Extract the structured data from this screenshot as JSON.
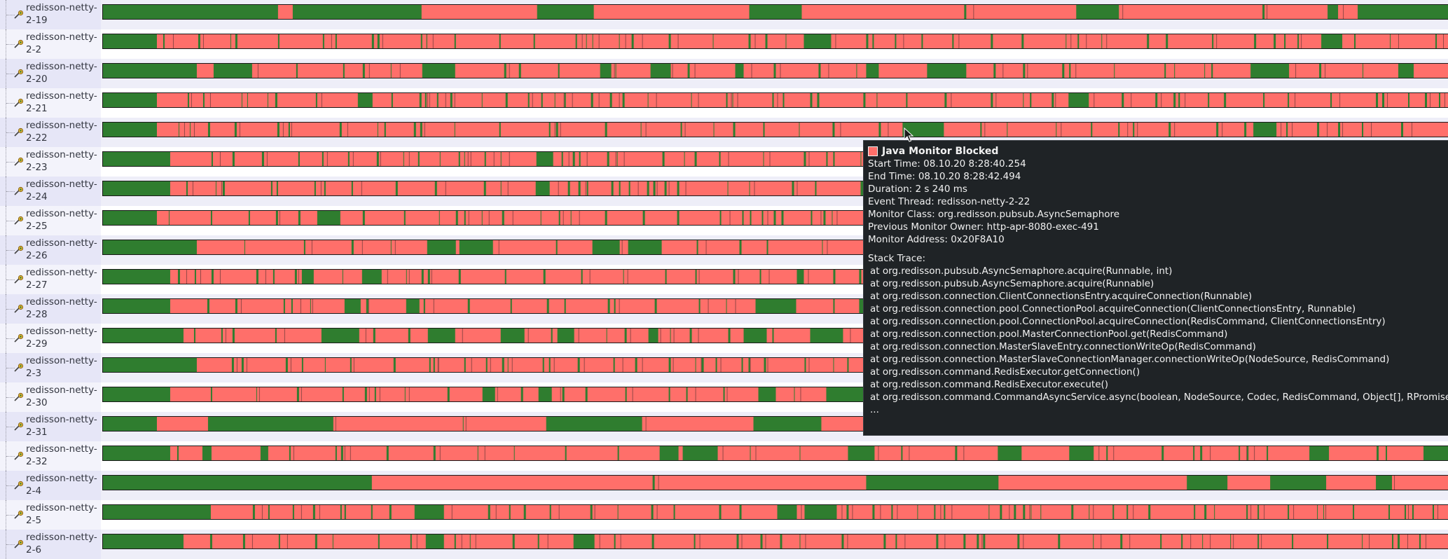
{
  "colors": {
    "running": "#2f7d2f",
    "blocked": "#ff6f6a",
    "label_bg": "#e6e6f7"
  },
  "threads": [
    {
      "name": "redisson-netty-2-19",
      "icon": "thread-icon",
      "pattern": "s19",
      "seed": 19
    },
    {
      "name": "redisson-netty-2-2",
      "icon": "thread-icon",
      "pattern": "s2",
      "seed": 2
    },
    {
      "name": "redisson-netty-2-20",
      "icon": "thread-icon",
      "pattern": "s20",
      "seed": 20
    },
    {
      "name": "redisson-netty-2-21",
      "icon": "thread-icon",
      "pattern": "s21",
      "seed": 21
    },
    {
      "name": "redisson-netty-2-22",
      "icon": "thread-icon",
      "pattern": "s22",
      "seed": 22
    },
    {
      "name": "redisson-netty-2-23",
      "icon": "thread-icon",
      "pattern": "s23",
      "seed": 23
    },
    {
      "name": "redisson-netty-2-24",
      "icon": "thread-icon",
      "pattern": "s24",
      "seed": 24
    },
    {
      "name": "redisson-netty-2-25",
      "icon": "thread-icon",
      "pattern": "s25",
      "seed": 25
    },
    {
      "name": "redisson-netty-2-26",
      "icon": "thread-icon",
      "pattern": "s26",
      "seed": 26
    },
    {
      "name": "redisson-netty-2-27",
      "icon": "thread-icon",
      "pattern": "s27",
      "seed": 27
    },
    {
      "name": "redisson-netty-2-28",
      "icon": "thread-icon",
      "pattern": "s28",
      "seed": 28
    },
    {
      "name": "redisson-netty-2-29",
      "icon": "thread-icon",
      "pattern": "s29",
      "seed": 29
    },
    {
      "name": "redisson-netty-2-3",
      "icon": "thread-icon",
      "pattern": "s3",
      "seed": 3
    },
    {
      "name": "redisson-netty-2-30",
      "icon": "thread-icon",
      "pattern": "s30",
      "seed": 30
    },
    {
      "name": "redisson-netty-2-31",
      "icon": "thread-icon",
      "pattern": "s31",
      "seed": 31
    },
    {
      "name": "redisson-netty-2-32",
      "icon": "thread-icon",
      "pattern": "s32",
      "seed": 32
    },
    {
      "name": "redisson-netty-2-4",
      "icon": "thread-icon",
      "pattern": "s4",
      "seed": 4
    },
    {
      "name": "redisson-netty-2-5",
      "icon": "thread-icon",
      "pattern": "s5",
      "seed": 5
    },
    {
      "name": "redisson-netty-2-6",
      "icon": "thread-icon",
      "pattern": "s6",
      "seed": 6
    }
  ],
  "tooltip": {
    "title": "Java Monitor Blocked",
    "swatch_icon": "blocked-color-swatch",
    "fields": [
      "Start Time: 08.10.20 8:28:40.254",
      "End Time: 08.10.20 8:28:42.494",
      "Duration: 2 s 240 ms",
      "Event Thread: redisson-netty-2-22",
      "Monitor Class: org.redisson.pubsub.AsyncSemaphore",
      "Previous Monitor Owner: http-apr-8080-exec-491",
      "Monitor Address: 0x20F8A10"
    ],
    "stack_label": "Stack Trace:",
    "stack": [
      "at org.redisson.pubsub.AsyncSemaphore.acquire(Runnable, int)",
      "at org.redisson.pubsub.AsyncSemaphore.acquire(Runnable)",
      "at org.redisson.connection.ClientConnectionsEntry.acquireConnection(Runnable)",
      "at org.redisson.connection.pool.ConnectionPool.acquireConnection(ClientConnectionsEntry, Runnable)",
      "at org.redisson.connection.pool.ConnectionPool.acquireConnection(RedisCommand, ClientConnectionsEntry)",
      "at org.redisson.connection.pool.MasterConnectionPool.get(RedisCommand)",
      "at org.redisson.connection.MasterSlaveEntry.connectionWriteOp(RedisCommand)",
      "at org.redisson.connection.MasterSlaveConnectionManager.connectionWriteOp(NodeSource, RedisCommand)",
      "at org.redisson.command.RedisExecutor.getConnection()",
      "at org.redisson.command.RedisExecutor.execute()",
      "at org.redisson.command.CommandAsyncService.async(boolean, NodeSource, Codec, RedisCommand, Object[], RPromise, boolean)"
    ],
    "ellipsis": "..."
  }
}
